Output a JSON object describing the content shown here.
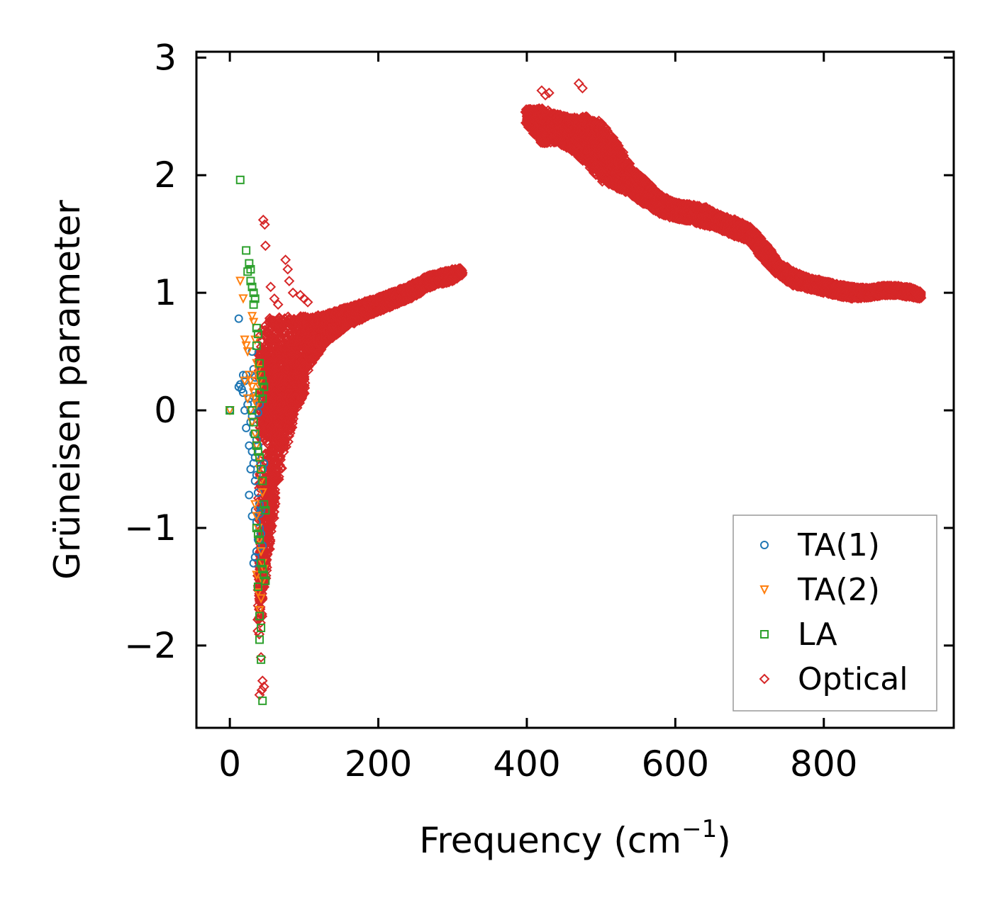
{
  "chart_data": {
    "type": "scatter",
    "xlabel": "Frequency (cm",
    "xlabel_sup": "−1",
    "xlabel_close": ")",
    "ylabel": "Grüneisen parameter",
    "xlim": [
      -45,
      975
    ],
    "ylim": [
      -2.7,
      3.05
    ],
    "xticks": [
      0,
      200,
      400,
      600,
      800
    ],
    "xtick_labels": [
      "0",
      "200",
      "400",
      "600",
      "800"
    ],
    "yticks": [
      -2,
      -1,
      0,
      1,
      2,
      3
    ],
    "ytick_labels": [
      "−2",
      "−1",
      "0",
      "1",
      "2",
      "3"
    ],
    "legend_position": "lower-right",
    "series": [
      {
        "name": "TA(1)",
        "marker": "circle",
        "color": "#1f77b4",
        "x": [
          0,
          12,
          14,
          16,
          18,
          20,
          22,
          24,
          26,
          28,
          30,
          32,
          12,
          18,
          22,
          26,
          30,
          34,
          20,
          24,
          28,
          32,
          36,
          38,
          28,
          32,
          34,
          36,
          38,
          40,
          30,
          34,
          36,
          40,
          42,
          44,
          32,
          34,
          36,
          38,
          40,
          42,
          44,
          46,
          26,
          30,
          32,
          34,
          36,
          38,
          40
        ],
        "y": [
          0,
          0.2,
          0.22,
          0.18,
          0.15,
          0.25,
          0.3,
          0.05,
          0.1,
          0.0,
          -0.05,
          0.12,
          0.78,
          0.3,
          -0.15,
          -0.3,
          -0.35,
          -0.4,
          0.0,
          0.05,
          -0.1,
          -0.2,
          -0.25,
          -0.3,
          -0.5,
          -0.45,
          -0.6,
          -0.55,
          -0.7,
          -0.8,
          -0.9,
          -0.85,
          -0.95,
          -1.0,
          -1.05,
          -1.15,
          -1.3,
          -1.25,
          -1.2,
          -1.1,
          -0.88,
          -0.85,
          -0.5,
          -0.45,
          -0.72,
          0.5,
          0.35,
          0.28,
          0.1,
          -0.02,
          0.05
        ]
      },
      {
        "name": "TA(2)",
        "marker": "triangle-down",
        "color": "#ff7f0e",
        "x": [
          0,
          14,
          18,
          20,
          22,
          24,
          26,
          28,
          30,
          32,
          34,
          36,
          38,
          40,
          20,
          24,
          28,
          30,
          34,
          36,
          38,
          40,
          42,
          44,
          34,
          36,
          38,
          40,
          42,
          44,
          36,
          38,
          40,
          42,
          44,
          46,
          30,
          32,
          34,
          36,
          38,
          40
        ],
        "y": [
          0,
          1.1,
          0.95,
          0.6,
          0.55,
          0.5,
          0.3,
          0.25,
          0.2,
          0.15,
          0.1,
          0.05,
          0.35,
          0.2,
          0.25,
          0.1,
          0.0,
          -0.1,
          -0.2,
          -0.3,
          -0.4,
          -0.5,
          -0.6,
          -0.7,
          -0.8,
          -0.9,
          -1.0,
          -1.1,
          -1.2,
          -1.3,
          -1.4,
          -1.55,
          -1.7,
          -1.6,
          -1.45,
          -1.35,
          0.8,
          0.75,
          0.6,
          0.4,
          0.3,
          0.25
        ]
      },
      {
        "name": "LA",
        "marker": "square",
        "color": "#2ca02c",
        "x": [
          0,
          14,
          22,
          26,
          28,
          30,
          32,
          34,
          36,
          38,
          40,
          42,
          44,
          46,
          24,
          28,
          32,
          36,
          40,
          44,
          30,
          32,
          34,
          36,
          38,
          40,
          42,
          44,
          46,
          48,
          36,
          38,
          40,
          42,
          44,
          46,
          48,
          38,
          40,
          42,
          40,
          42,
          44
        ],
        "y": [
          0,
          1.96,
          1.36,
          1.25,
          1.2,
          1.05,
          1.0,
          0.95,
          0.7,
          0.65,
          0.4,
          0.3,
          0.25,
          0.2,
          1.18,
          1.1,
          0.9,
          0.55,
          0.15,
          0.1,
          0.0,
          -0.1,
          -0.2,
          -0.3,
          -0.35,
          -0.4,
          -0.5,
          -0.6,
          -0.8,
          -0.85,
          -1.0,
          -1.05,
          -1.1,
          -1.3,
          -1.35,
          -1.4,
          -1.45,
          -1.5,
          -1.75,
          -1.85,
          -1.95,
          -2.12,
          -2.47
        ]
      }
    ],
    "optical_bands": [
      {
        "x": [
          40,
          55,
          70,
          90,
          110,
          130,
          160,
          200,
          240,
          270,
          300,
          312
        ],
        "center": [
          0.2,
          0.3,
          0.35,
          0.45,
          0.6,
          0.7,
          0.8,
          0.9,
          1.0,
          1.1,
          1.15,
          1.18
        ],
        "spread": [
          0.45,
          0.5,
          0.45,
          0.35,
          0.2,
          0.12,
          0.08,
          0.06,
          0.06,
          0.05,
          0.05,
          0.03
        ]
      },
      {
        "x": [
          40,
          50,
          60,
          70,
          80,
          90,
          100
        ],
        "center": [
          -0.5,
          -0.4,
          -0.2,
          -0.05,
          0.1,
          0.2,
          0.3
        ],
        "spread": [
          1.2,
          0.9,
          0.6,
          0.4,
          0.3,
          0.2,
          0.15
        ]
      },
      {
        "x": [
          38,
          45,
          50,
          55,
          60
        ],
        "center": [
          -1.6,
          -1.3,
          -1.0,
          -0.8,
          -0.6
        ],
        "spread": [
          0.35,
          0.3,
          0.3,
          0.25,
          0.2
        ]
      },
      {
        "x": [
          400,
          420,
          440,
          460,
          480,
          500,
          520,
          540,
          560,
          580,
          600,
          620,
          640,
          660,
          680,
          700,
          720,
          740,
          760,
          780,
          800,
          820,
          840,
          860,
          880,
          900,
          920,
          930
        ],
        "center": [
          2.5,
          2.42,
          2.4,
          2.35,
          2.3,
          2.2,
          2.1,
          1.95,
          1.85,
          1.75,
          1.7,
          1.68,
          1.65,
          1.6,
          1.55,
          1.5,
          1.35,
          1.2,
          1.12,
          1.08,
          1.05,
          1.02,
          1.0,
          1.0,
          1.02,
          1.02,
          1.0,
          0.98
        ],
        "spread": [
          0.06,
          0.15,
          0.12,
          0.14,
          0.2,
          0.25,
          0.2,
          0.12,
          0.1,
          0.08,
          0.07,
          0.07,
          0.08,
          0.06,
          0.07,
          0.06,
          0.08,
          0.06,
          0.06,
          0.05,
          0.05,
          0.05,
          0.05,
          0.04,
          0.04,
          0.04,
          0.04,
          0.03
        ]
      }
    ],
    "optical_outliers": {
      "x": [
        45,
        47,
        48,
        75,
        78,
        80,
        85,
        95,
        100,
        105,
        55,
        60,
        65,
        42,
        44,
        46,
        40,
        43,
        470,
        475,
        430,
        420,
        425
      ],
      "y": [
        1.62,
        1.58,
        1.4,
        1.28,
        1.2,
        1.1,
        1.0,
        0.98,
        0.95,
        0.92,
        1.05,
        0.95,
        0.9,
        -2.1,
        -2.3,
        -2.35,
        -2.42,
        -2.38,
        2.78,
        2.74,
        2.7,
        2.72,
        2.68
      ]
    },
    "legend": [
      {
        "label": "TA(1)",
        "marker": "circle",
        "color": "#1f77b4"
      },
      {
        "label": "TA(2)",
        "marker": "triangle-down",
        "color": "#ff7f0e"
      },
      {
        "label": "LA",
        "marker": "square",
        "color": "#2ca02c"
      },
      {
        "label": "Optical",
        "marker": "diamond",
        "color": "#d62728"
      }
    ]
  }
}
